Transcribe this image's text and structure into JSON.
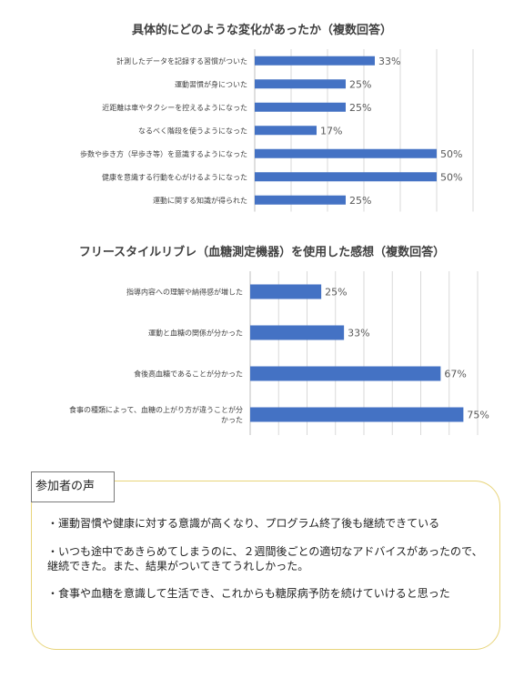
{
  "chart_data": [
    {
      "type": "bar",
      "title": "具体的にどのような変化があったか（複数回答）",
      "categories": [
        "計測したデータを記録する習慣がついた",
        "運動習慣が身についた",
        "近距離は車やタクシーを控えるようになった",
        "なるべく階段を使うようになった",
        "歩数や歩き方（早歩き等）を意識するようになった",
        "健康を意識する行動を心がけるようになった",
        "運動に関する知識が得られた"
      ],
      "values": [
        33,
        25,
        25,
        17,
        50,
        50,
        25
      ],
      "value_labels": [
        "33%",
        "25%",
        "25%",
        "17%",
        "50%",
        "50%",
        "25%"
      ],
      "xlim": [
        0,
        60
      ],
      "grid": true,
      "bar_color": "#4472c4"
    },
    {
      "type": "bar",
      "title": "フリースタイルリブレ（血糖測定機器）を使用した感想（複数回答）",
      "categories": [
        "指導内容への理解や納得感が増した",
        "運動と血糖の関係が分かった",
        "食後高血糖であることが分かった",
        "食事の種類によって、血糖の上がり方が違うことが分かった"
      ],
      "category_lines": [
        [
          "指導内容への理解や納得感が増した"
        ],
        [
          "運動と血糖の関係が分かった"
        ],
        [
          "食後高血糖であることが分かった"
        ],
        [
          "食事の種類によって、血糖の上がり方が違うことが分",
          "かった"
        ]
      ],
      "values": [
        25,
        33,
        67,
        75
      ],
      "value_labels": [
        "25%",
        "33%",
        "67%",
        "75%"
      ],
      "xlim": [
        0,
        80
      ],
      "grid": true,
      "bar_color": "#4472c4"
    }
  ],
  "voices": {
    "title": "参加者の声",
    "items": [
      "・運動習慣や健康に対する意識が高くなり、プログラム終了後も継続できている",
      "・いつも途中であきらめてしまうのに、２週間後ごとの適切なアドバイスがあったので、継続できた。また、結果がついてきてうれしかった。",
      "・食事や血糖を意識して生活でき、これからも糖尿病予防を続けていけると思った"
    ]
  }
}
